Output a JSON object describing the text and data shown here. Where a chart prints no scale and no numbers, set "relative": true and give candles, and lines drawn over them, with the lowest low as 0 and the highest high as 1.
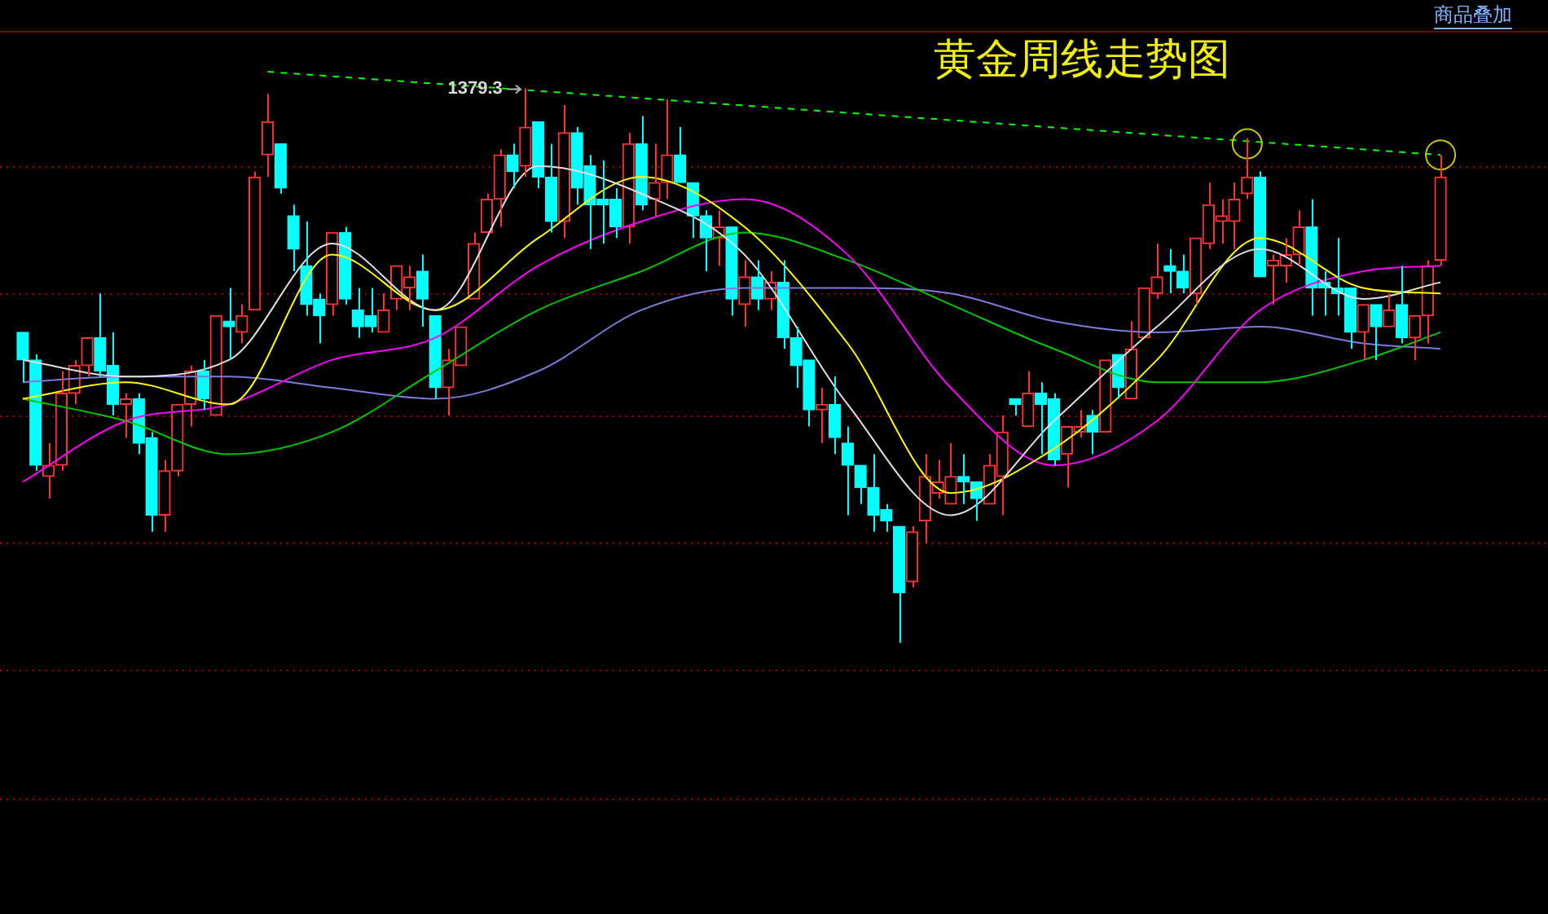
{
  "chart_data": {
    "type": "candlestick",
    "title": "黄金周线走势图",
    "relative": true,
    "marker": "none",
    "categories": [
      null,
      null,
      null,
      null,
      null,
      null,
      null,
      null,
      null,
      null,
      null,
      null,
      null,
      null,
      null,
      null,
      null,
      null,
      null,
      null,
      null,
      null,
      null,
      null,
      null,
      null,
      null,
      null,
      null,
      null,
      null,
      null,
      null,
      null,
      null,
      null,
      null,
      null,
      null,
      null,
      null,
      null,
      null,
      null,
      null,
      null,
      null,
      null,
      null,
      null,
      null,
      null,
      null,
      null,
      null,
      null,
      null,
      null,
      null,
      null,
      null,
      null,
      null,
      null,
      null,
      null,
      null,
      null,
      null,
      null,
      null,
      null,
      null,
      null,
      null,
      null,
      null,
      null,
      null,
      null,
      null,
      null,
      null,
      null,
      null,
      null,
      null,
      null,
      null,
      null,
      null,
      null,
      null,
      null,
      null,
      null,
      null,
      null,
      null,
      null,
      null,
      null,
      null,
      null,
      null,
      null,
      null,
      null,
      null,
      null,
      null
    ],
    "ohlc": [
      [
        0.56,
        0.56,
        0.47,
        0.51
      ],
      [
        0.51,
        0.52,
        0.31,
        0.32
      ],
      [
        0.3,
        0.36,
        0.26,
        0.32
      ],
      [
        0.32,
        0.49,
        0.31,
        0.45
      ],
      [
        0.45,
        0.51,
        0.43,
        0.5
      ],
      [
        0.5,
        0.55,
        0.48,
        0.55
      ],
      [
        0.55,
        0.63,
        0.48,
        0.49
      ],
      [
        0.5,
        0.56,
        0.41,
        0.43
      ],
      [
        0.43,
        0.45,
        0.37,
        0.44
      ],
      [
        0.44,
        0.45,
        0.34,
        0.36
      ],
      [
        0.37,
        0.38,
        0.2,
        0.23
      ],
      [
        0.23,
        0.33,
        0.2,
        0.31
      ],
      [
        0.31,
        0.43,
        0.3,
        0.43
      ],
      [
        0.43,
        0.5,
        0.39,
        0.49
      ],
      [
        0.49,
        0.51,
        0.42,
        0.44
      ],
      [
        0.41,
        0.59,
        0.41,
        0.59
      ],
      [
        0.58,
        0.64,
        0.51,
        0.57
      ],
      [
        0.56,
        0.61,
        0.54,
        0.59
      ],
      [
        0.6,
        0.85,
        0.6,
        0.84
      ],
      [
        0.88,
        0.99,
        0.84,
        0.94
      ],
      [
        0.9,
        0.9,
        0.81,
        0.82
      ],
      [
        0.77,
        0.79,
        0.67,
        0.71
      ],
      [
        0.68,
        0.76,
        0.59,
        0.61
      ],
      [
        0.62,
        0.63,
        0.54,
        0.59
      ],
      [
        0.61,
        0.74,
        0.59,
        0.74
      ],
      [
        0.74,
        0.75,
        0.61,
        0.62
      ],
      [
        0.6,
        0.64,
        0.55,
        0.57
      ],
      [
        0.59,
        0.64,
        0.56,
        0.57
      ],
      [
        0.56,
        0.63,
        0.56,
        0.6
      ],
      [
        0.62,
        0.68,
        0.6,
        0.68
      ],
      [
        0.64,
        0.68,
        0.6,
        0.66
      ],
      [
        0.67,
        0.7,
        0.57,
        0.62
      ],
      [
        0.59,
        0.59,
        0.44,
        0.46
      ],
      [
        0.46,
        0.53,
        0.41,
        0.51
      ],
      [
        0.5,
        0.57,
        0.5,
        0.57
      ],
      [
        0.62,
        0.74,
        0.62,
        0.72
      ],
      [
        0.74,
        0.81,
        0.74,
        0.8
      ],
      [
        0.8,
        0.89,
        0.75,
        0.88
      ],
      [
        0.88,
        0.9,
        0.82,
        0.85
      ],
      [
        0.86,
        1,
        0.84,
        0.93
      ],
      [
        0.94,
        0.94,
        0.82,
        0.84
      ],
      [
        0.84,
        0.9,
        0.74,
        0.76
      ],
      [
        0.76,
        0.97,
        0.73,
        0.92
      ],
      [
        0.92,
        0.93,
        0.79,
        0.82
      ],
      [
        0.86,
        0.88,
        0.71,
        0.79
      ],
      [
        0.8,
        0.87,
        0.72,
        0.79
      ],
      [
        0.8,
        0.82,
        0.73,
        0.75
      ],
      [
        0.75,
        0.92,
        0.72,
        0.9
      ],
      [
        0.9,
        0.95,
        0.78,
        0.79
      ],
      [
        0.8,
        0.9,
        0.77,
        0.83
      ],
      [
        0.83,
        0.98,
        0.8,
        0.88
      ],
      [
        0.88,
        0.93,
        0.83,
        0.83
      ],
      [
        0.83,
        0.83,
        0.73,
        0.77
      ],
      [
        0.77,
        0.78,
        0.67,
        0.73
      ],
      [
        0.73,
        0.78,
        0.68,
        0.75
      ],
      [
        0.75,
        0.75,
        0.59,
        0.62
      ],
      [
        0.61,
        0.69,
        0.57,
        0.66
      ],
      [
        0.66,
        0.69,
        0.6,
        0.62
      ],
      [
        0.62,
        0.67,
        0.6,
        0.65
      ],
      [
        0.65,
        0.69,
        0.53,
        0.55
      ],
      [
        0.55,
        0.57,
        0.46,
        0.5
      ],
      [
        0.51,
        0.51,
        0.39,
        0.42
      ],
      [
        0.42,
        0.46,
        0.36,
        0.43
      ],
      [
        0.43,
        0.48,
        0.34,
        0.37
      ],
      [
        0.36,
        0.39,
        0.23,
        0.32
      ],
      [
        0.32,
        0.32,
        0.25,
        0.28
      ],
      [
        0.28,
        0.34,
        0.2,
        0.23
      ],
      [
        0.24,
        0.25,
        0.2,
        0.22
      ],
      [
        0.21,
        0.21,
        0,
        0.09
      ],
      [
        0.11,
        0.21,
        0.1,
        0.2
      ],
      [
        0.22,
        0.34,
        0.18,
        0.3
      ],
      [
        0.27,
        0.33,
        0.26,
        0.29
      ],
      [
        0.25,
        0.36,
        0.25,
        0.3
      ],
      [
        0.3,
        0.34,
        0.25,
        0.29
      ],
      [
        0.29,
        0.29,
        0.22,
        0.26
      ],
      [
        0.25,
        0.34,
        0.25,
        0.32
      ],
      [
        0.3,
        0.41,
        0.23,
        0.38
      ],
      [
        0.44,
        0.44,
        0.41,
        0.43
      ],
      [
        0.39,
        0.49,
        0.39,
        0.45
      ],
      [
        0.45,
        0.47,
        0.34,
        0.43
      ],
      [
        0.44,
        0.45,
        0.32,
        0.33
      ],
      [
        0.34,
        0.39,
        0.28,
        0.39
      ],
      [
        0.38,
        0.42,
        0.37,
        0.39
      ],
      [
        0.41,
        0.42,
        0.34,
        0.38
      ],
      [
        0.38,
        0.51,
        0.38,
        0.51
      ],
      [
        0.52,
        0.52,
        0.44,
        0.46
      ],
      [
        0.44,
        0.58,
        0.44,
        0.53
      ],
      [
        0.55,
        0.64,
        0.55,
        0.64
      ],
      [
        0.63,
        0.72,
        0.62,
        0.66
      ],
      [
        0.68,
        0.71,
        0.63,
        0.67
      ],
      [
        0.67,
        0.7,
        0.63,
        0.64
      ],
      [
        0.63,
        0.73,
        0.61,
        0.73
      ],
      [
        0.72,
        0.83,
        0.71,
        0.79
      ],
      [
        0.76,
        0.8,
        0.72,
        0.77
      ],
      [
        0.76,
        0.83,
        0.71,
        0.8
      ],
      [
        0.81,
        0.91,
        0.8,
        0.84
      ],
      [
        0.84,
        0.85,
        0.66,
        0.66
      ],
      [
        0.68,
        0.7,
        0.61,
        0.69
      ],
      [
        0.68,
        0.73,
        0.65,
        0.7
      ],
      [
        0.7,
        0.78,
        0.68,
        0.75
      ],
      [
        0.75,
        0.8,
        0.59,
        0.64
      ],
      [
        0.65,
        0.67,
        0.59,
        0.64
      ],
      [
        0.64,
        0.73,
        0.59,
        0.63
      ],
      [
        0.64,
        0.64,
        0.53,
        0.56
      ],
      [
        0.56,
        0.61,
        0.51,
        0.61
      ],
      [
        0.61,
        0.61,
        0.51,
        0.57
      ],
      [
        0.57,
        0.63,
        0.57,
        0.6
      ],
      [
        0.61,
        0.68,
        0.54,
        0.55
      ],
      [
        0.55,
        0.59,
        0.51,
        0.59
      ],
      [
        0.59,
        0.69,
        0.54,
        0.68
      ],
      [
        0.69,
        0.88,
        0.68,
        0.84
      ]
    ],
    "colors": [
      "#00ffff",
      "#00ffff",
      "#ff3232",
      "#ff3232",
      "#ff3232",
      "#ff3232",
      "#00ffff",
      "#00ffff",
      "#ff3232",
      "#00ffff",
      "#00ffff",
      "#ff3232",
      "#ff3232",
      "#ff3232",
      "#00ffff",
      "#ff3232",
      "#00ffff",
      "#ff3232",
      "#ff3232",
      "#ff3232",
      "#00ffff",
      "#00ffff",
      "#00ffff",
      "#00ffff",
      "#ff3232",
      "#00ffff",
      "#00ffff",
      "#00ffff",
      "#ff3232",
      "#ff3232",
      "#ff3232",
      "#00ffff",
      "#00ffff",
      "#ff3232",
      "#ff3232",
      "#ff3232",
      "#ff3232",
      "#ff3232",
      "#00ffff",
      "#ff3232",
      "#00ffff",
      "#00ffff",
      "#ff3232",
      "#00ffff",
      "#00ffff",
      "#00ffff",
      "#00ffff",
      "#ff3232",
      "#00ffff",
      "#ff3232",
      "#ff3232",
      "#00ffff",
      "#00ffff",
      "#00ffff",
      "#ff3232",
      "#00ffff",
      "#ff3232",
      "#00ffff",
      "#ff3232",
      "#00ffff",
      "#00ffff",
      "#00ffff",
      "#ff3232",
      "#00ffff",
      "#00ffff",
      "#00ffff",
      "#00ffff",
      "#00ffff",
      "#00ffff",
      "#ff3232",
      "#ff3232",
      "#ff3232",
      "#ff3232",
      "#00ffff",
      "#00ffff",
      "#ff3232",
      "#ff3232",
      "#00ffff",
      "#ff3232",
      "#00ffff",
      "#00ffff",
      "#ff3232",
      "#ff3232",
      "#00ffff",
      "#ff3232",
      "#00ffff",
      "#ff3232",
      "#ff3232",
      "#ff3232",
      "#00ffff",
      "#00ffff",
      "#ff3232",
      "#ff3232",
      "#ff3232",
      "#ff3232",
      "#ff3232",
      "#00ffff",
      "#ff3232",
      "#ff3232",
      "#ff3232",
      "#00ffff",
      "#00ffff",
      "#00ffff",
      "#00ffff",
      "#ff3232",
      "#00ffff",
      "#ff3232",
      "#00ffff",
      "#ff3232",
      "#ff3232",
      "#ff3232"
    ],
    "series": [
      {
        "type": "line",
        "color": "#e0e0e0",
        "values": [
          0.51,
          null,
          null,
          null,
          null,
          null,
          null,
          null,
          0.48,
          null,
          null,
          null,
          null,
          null,
          null,
          null,
          0.51,
          null,
          null,
          null,
          null,
          null,
          null,
          null,
          0.72,
          null,
          null,
          null,
          null,
          null,
          null,
          null,
          0.6,
          null,
          null,
          null,
          null,
          null,
          null,
          null,
          0.86,
          null,
          null,
          null,
          null,
          null,
          null,
          null,
          0.81,
          null,
          null,
          null,
          null,
          null,
          null,
          null,
          0.7,
          null,
          null,
          null,
          null,
          null,
          null,
          null,
          0.43,
          null,
          null,
          null,
          null,
          null,
          null,
          null,
          0.23,
          null,
          null,
          null,
          null,
          null,
          null,
          null,
          0.4,
          null,
          null,
          null,
          null,
          null,
          null,
          null,
          0.57,
          null,
          null,
          null,
          null,
          null,
          null,
          null,
          0.71,
          null,
          null,
          null,
          null,
          null,
          null,
          null,
          0.62,
          null,
          null,
          null,
          null,
          null,
          0.65
        ]
      },
      {
        "type": "line",
        "color": "#ffff00",
        "values": [
          0.44,
          null,
          null,
          null,
          null,
          null,
          null,
          null,
          0.47,
          null,
          null,
          null,
          null,
          null,
          null,
          null,
          0.43,
          null,
          null,
          null,
          null,
          null,
          null,
          null,
          0.7,
          null,
          null,
          null,
          null,
          null,
          null,
          null,
          0.6,
          null,
          null,
          null,
          null,
          null,
          null,
          null,
          0.73,
          null,
          null,
          null,
          null,
          null,
          null,
          null,
          0.84,
          null,
          null,
          null,
          null,
          null,
          null,
          null,
          0.75,
          null,
          null,
          null,
          null,
          null,
          null,
          null,
          0.54,
          null,
          null,
          null,
          null,
          null,
          null,
          null,
          0.27,
          null,
          null,
          null,
          null,
          null,
          null,
          null,
          0.35,
          null,
          null,
          null,
          null,
          null,
          null,
          null,
          0.51,
          null,
          null,
          null,
          null,
          null,
          null,
          null,
          0.73,
          null,
          null,
          null,
          null,
          null,
          null,
          null,
          0.64,
          null,
          null,
          null,
          null,
          null,
          0.63
        ]
      },
      {
        "type": "line",
        "color": "#ff00ff",
        "values": [
          0.29,
          null,
          null,
          null,
          null,
          null,
          null,
          null,
          0.4,
          null,
          null,
          null,
          null,
          null,
          null,
          null,
          0.43,
          null,
          null,
          null,
          null,
          null,
          null,
          null,
          0.51,
          null,
          null,
          null,
          null,
          null,
          null,
          null,
          0.55,
          null,
          null,
          null,
          null,
          null,
          null,
          null,
          0.68,
          null,
          null,
          null,
          null,
          null,
          null,
          null,
          0.76,
          null,
          null,
          null,
          null,
          null,
          null,
          null,
          0.8,
          null,
          null,
          null,
          null,
          null,
          null,
          null,
          0.7,
          null,
          null,
          null,
          null,
          null,
          null,
          null,
          0.46,
          null,
          null,
          null,
          null,
          null,
          null,
          null,
          0.32,
          null,
          null,
          null,
          null,
          null,
          null,
          null,
          0.4,
          null,
          null,
          null,
          null,
          null,
          null,
          null,
          0.6,
          null,
          null,
          null,
          null,
          null,
          null,
          null,
          0.67,
          null,
          null,
          null,
          null,
          null,
          0.68
        ]
      },
      {
        "type": "line",
        "color": "#00c800",
        "values": [
          0.44,
          null,
          null,
          null,
          null,
          null,
          null,
          null,
          0.4,
          null,
          null,
          null,
          null,
          null,
          null,
          null,
          0.34,
          null,
          null,
          null,
          null,
          null,
          null,
          null,
          0.38,
          null,
          null,
          null,
          null,
          null,
          null,
          null,
          0.49,
          null,
          null,
          null,
          null,
          null,
          null,
          null,
          0.6,
          null,
          null,
          null,
          null,
          null,
          null,
          null,
          0.67,
          null,
          null,
          null,
          null,
          null,
          null,
          null,
          0.74,
          null,
          null,
          null,
          null,
          null,
          null,
          null,
          0.69,
          null,
          null,
          null,
          null,
          null,
          null,
          null,
          0.61,
          null,
          null,
          null,
          null,
          null,
          null,
          null,
          0.53,
          null,
          null,
          null,
          null,
          null,
          null,
          null,
          0.47,
          null,
          null,
          null,
          null,
          null,
          null,
          null,
          0.47,
          null,
          null,
          null,
          null,
          null,
          null,
          null,
          0.51,
          null,
          null,
          null,
          null,
          null,
          0.56
        ]
      },
      {
        "type": "line",
        "color": "#7b7bdc",
        "values": [
          0.47,
          null,
          null,
          null,
          null,
          null,
          null,
          null,
          0.48,
          null,
          null,
          null,
          null,
          null,
          null,
          null,
          0.48,
          null,
          null,
          null,
          null,
          null,
          null,
          null,
          0.46,
          null,
          null,
          null,
          null,
          null,
          null,
          null,
          0.44,
          null,
          null,
          null,
          null,
          null,
          null,
          null,
          0.49,
          null,
          null,
          null,
          null,
          null,
          null,
          null,
          0.6,
          null,
          null,
          null,
          null,
          null,
          null,
          null,
          0.64,
          null,
          null,
          null,
          null,
          null,
          null,
          null,
          0.64,
          null,
          null,
          null,
          null,
          null,
          null,
          null,
          0.63,
          null,
          null,
          null,
          null,
          null,
          null,
          null,
          0.58,
          null,
          null,
          null,
          null,
          null,
          null,
          null,
          0.56,
          null,
          null,
          null,
          null,
          null,
          null,
          null,
          0.57,
          null,
          null,
          null,
          null,
          null,
          null,
          null,
          0.54,
          null,
          null,
          null,
          null,
          null,
          0.53
        ]
      },
      {
        "type": "line",
        "color": "#00ff00",
        "line_style": "dashed",
        "values": [
          null,
          null,
          null,
          null,
          null,
          null,
          null,
          null,
          null,
          null,
          null,
          null,
          null,
          null,
          null,
          null,
          null,
          null,
          null,
          1.03,
          null,
          null,
          null,
          null,
          null,
          null,
          null,
          null,
          null,
          null,
          null,
          null,
          null,
          null,
          null,
          null,
          null,
          null,
          null,
          null,
          null,
          null,
          null,
          null,
          null,
          null,
          null,
          null,
          null,
          null,
          null,
          null,
          null,
          null,
          null,
          null,
          null,
          null,
          null,
          null,
          null,
          null,
          null,
          null,
          null,
          null,
          null,
          null,
          null,
          null,
          null,
          null,
          null,
          null,
          null,
          null,
          null,
          null,
          null,
          null,
          null,
          null,
          null,
          null,
          null,
          null,
          null,
          null,
          null,
          null,
          null,
          null,
          null,
          null,
          null,
          null,
          null,
          null,
          null,
          null,
          null,
          null,
          null,
          null,
          null,
          null,
          null,
          null,
          null,
          null,
          0.88
        ]
      },
      {
        "type": "scatter",
        "color": "#c8c800",
        "marker": "circle",
        "values": [
          null,
          null,
          null,
          null,
          null,
          null,
          null,
          null,
          null,
          null,
          null,
          null,
          null,
          null,
          null,
          null,
          null,
          null,
          null,
          null,
          null,
          null,
          null,
          null,
          null,
          null,
          null,
          null,
          null,
          null,
          null,
          null,
          null,
          null,
          null,
          null,
          null,
          null,
          null,
          null,
          null,
          null,
          null,
          null,
          null,
          null,
          null,
          null,
          null,
          null,
          null,
          null,
          null,
          null,
          null,
          null,
          null,
          null,
          null,
          null,
          null,
          null,
          null,
          null,
          null,
          null,
          null,
          null,
          null,
          null,
          null,
          null,
          null,
          null,
          null,
          null,
          null,
          null,
          null,
          null,
          null,
          null,
          null,
          null,
          null,
          null,
          null,
          null,
          null,
          null,
          null,
          null,
          null,
          null,
          null,
          0.9,
          null,
          null,
          null,
          null,
          null,
          null,
          null,
          null,
          null,
          null,
          null,
          null,
          null,
          null,
          0.88
        ]
      }
    ],
    "ref_lines": [
      {
        "axis": "y",
        "value": 0.86,
        "color": "#a00000",
        "line_style": "dotted"
      },
      {
        "axis": "y",
        "value": 0.63,
        "color": "#a00000",
        "line_style": "dotted"
      },
      {
        "axis": "y",
        "value": 0.41,
        "color": "#a00000",
        "line_style": "dotted"
      },
      {
        "axis": "y",
        "value": 0.18,
        "color": "#a00000",
        "line_style": "dotted"
      },
      {
        "axis": "y",
        "value": -0.05,
        "color": "#a00000",
        "line_style": "dotted"
      },
      {
        "axis": "y",
        "value": -0.28,
        "color": "#a00000",
        "line_style": "dotted"
      }
    ],
    "annotations": [
      "1379.3",
      "商品叠加"
    ]
  }
}
